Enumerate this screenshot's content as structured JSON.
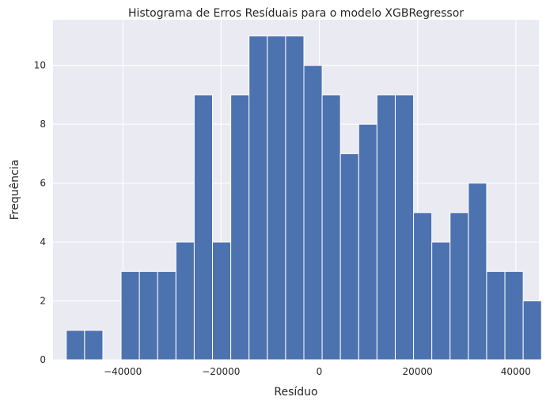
{
  "chart_data": {
    "type": "bar",
    "title": "Histograma de Erros Resíduais para o modelo XGBRegressor",
    "xlabel": "Resíduo",
    "ylabel": "Frequência",
    "bin_start": -51500,
    "bin_width": 3720,
    "counts": [
      1,
      1,
      0,
      3,
      3,
      3,
      4,
      9,
      4,
      9,
      11,
      11,
      11,
      10,
      9,
      7,
      8,
      9,
      9,
      5,
      4,
      5,
      6,
      3,
      3,
      2
    ],
    "xlim": [
      -54200,
      44700
    ],
    "ylim": [
      0,
      11.55
    ],
    "xticks": [
      -40000,
      -20000,
      0,
      20000,
      40000
    ],
    "xtick_labels": [
      "−40000",
      "−20000",
      "0",
      "20000",
      "40000"
    ],
    "yticks": [
      0,
      2,
      4,
      6,
      8,
      10
    ],
    "ytick_labels": [
      "0",
      "2",
      "4",
      "6",
      "8",
      "10"
    ],
    "grid": true,
    "bar_color": "#4c72b0",
    "background_color": "#eaeaf2"
  }
}
